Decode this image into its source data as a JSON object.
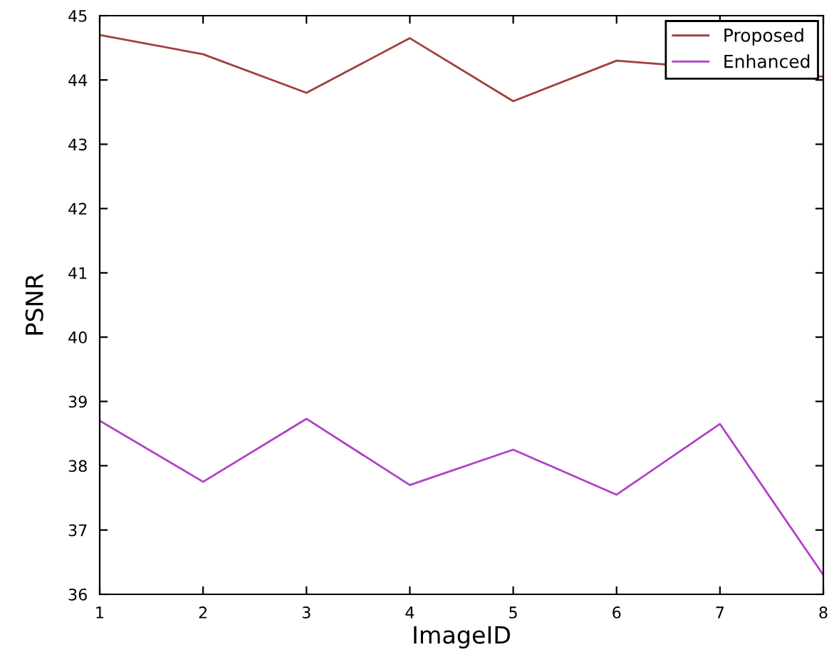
{
  "chart_data": {
    "type": "line",
    "xlabel": "ImageID",
    "ylabel": "PSNR",
    "x": [
      1,
      2,
      3,
      4,
      5,
      6,
      7,
      8
    ],
    "series": [
      {
        "name": "Proposed",
        "color": "#a0403c",
        "values": [
          44.7,
          44.4,
          43.8,
          44.65,
          43.67,
          44.3,
          null,
          44.05
        ]
      },
      {
        "name": "Enhanced",
        "color": "#b040c8",
        "values": [
          38.7,
          37.75,
          38.73,
          37.7,
          38.25,
          37.55,
          38.65,
          36.3
        ]
      }
    ],
    "xlim": [
      1,
      8
    ],
    "xticks": [
      1,
      2,
      3,
      4,
      5,
      6,
      7,
      8
    ],
    "ylim": [
      36,
      45
    ],
    "yticks": [
      36,
      37,
      38,
      39,
      40,
      41,
      42,
      43,
      44,
      45
    ],
    "grid": false,
    "legend": "top right",
    "marker": "none",
    "line_style": "solid"
  }
}
